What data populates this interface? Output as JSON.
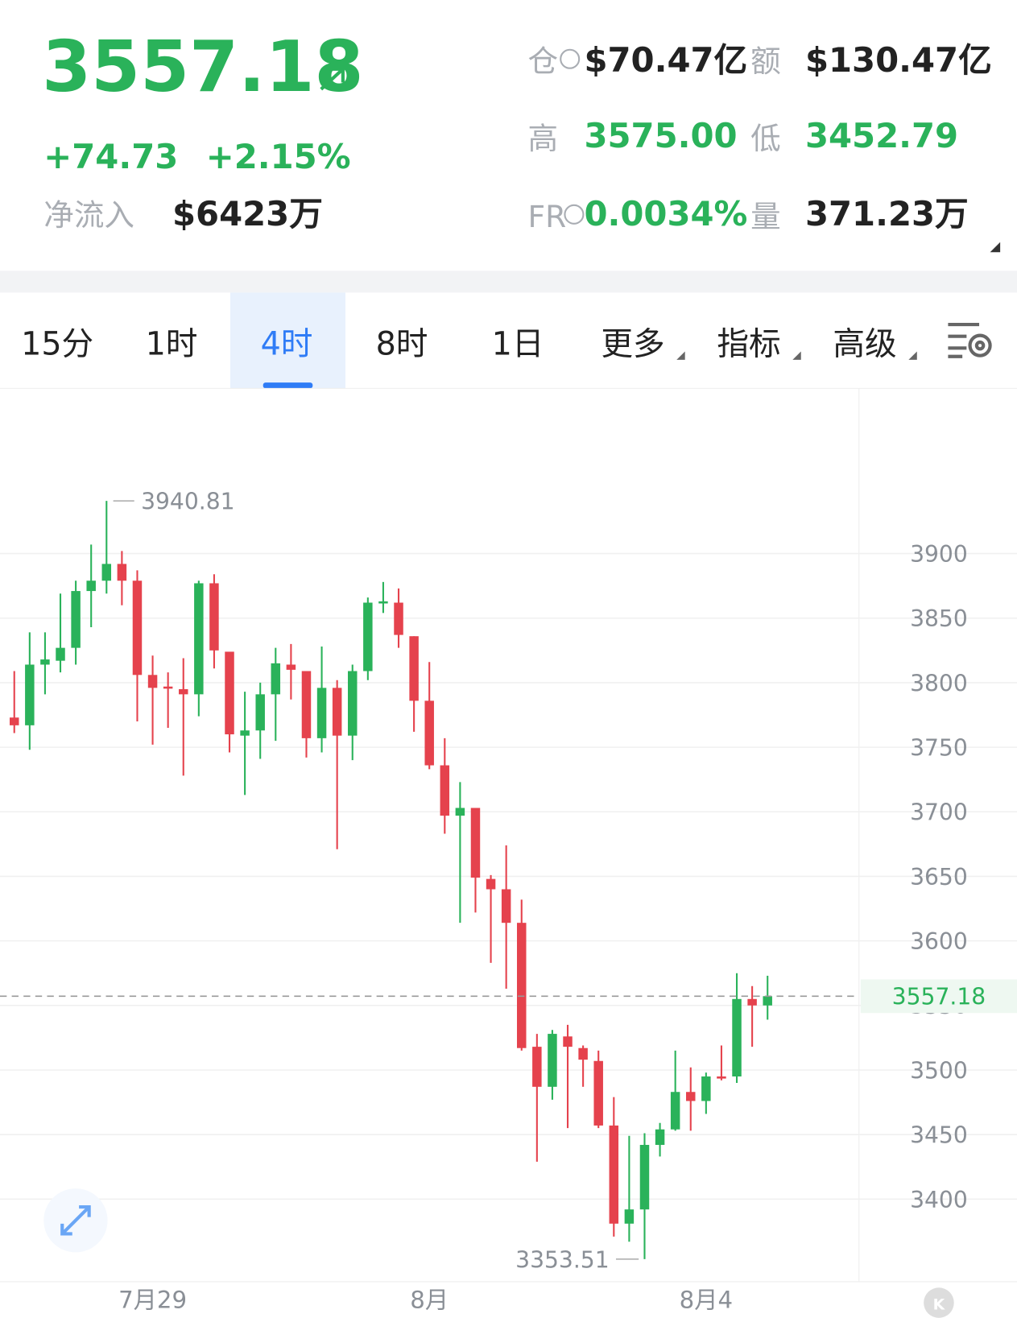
{
  "header": {
    "price": "3557.18",
    "change": "+74.73",
    "change_pct": "+2.15%",
    "inflow_label": "净流入",
    "inflow_value": "$6423万",
    "stats": [
      {
        "label": "仓",
        "value": "$70.47亿"
      },
      {
        "label": "额",
        "value": "$130.47亿"
      },
      {
        "label": "高",
        "value": "3575.00"
      },
      {
        "label": "低",
        "value": "3452.79"
      },
      {
        "label": "FR",
        "value": "0.0034%"
      },
      {
        "label": "量",
        "value": "371.23万"
      }
    ]
  },
  "tabs": [
    "15分",
    "1时",
    "4时",
    "8时",
    "1日",
    "更多",
    "指标",
    "高级"
  ],
  "selected_tab": "4时",
  "chart_data": {
    "type": "candlestick",
    "categories": [
      null,
      null,
      null,
      null,
      null,
      null,
      null,
      null,
      null,
      "7月29",
      null,
      null,
      null,
      null,
      null,
      null,
      null,
      null,
      null,
      null,
      null,
      null,
      null,
      null,
      null,
      null,
      null,
      "8月",
      null,
      null,
      null,
      null,
      null,
      null,
      null,
      null,
      null,
      null,
      null,
      null,
      null,
      null,
      null,
      null,
      null,
      "8月4",
      null,
      null,
      null,
      null
    ],
    "open": [
      3773,
      3767,
      3814,
      3817,
      3827,
      3871,
      3879,
      3892,
      3879,
      3806,
      3797,
      3795,
      3791,
      3877,
      3824,
      3759,
      3763,
      3791,
      3814,
      3809,
      3757,
      3796,
      3759,
      3809,
      3862,
      3862,
      3836,
      3786,
      3736,
      3697,
      3703,
      3648,
      3640,
      3614,
      3518,
      3487,
      3526,
      3517,
      3507,
      3457,
      3381,
      3392,
      3442,
      3454,
      3483,
      3476,
      3495,
      3495,
      3555,
      3550
    ],
    "high": [
      3809,
      3839,
      3839,
      3869,
      3879,
      3907,
      3940.81,
      3902,
      3887,
      3821,
      3808,
      3819,
      3879,
      3884,
      3824,
      3793,
      3800,
      3827,
      3830,
      3809,
      3828,
      3802,
      3814,
      3866,
      3878,
      3873,
      3836,
      3816,
      3757,
      3723,
      3703,
      3651,
      3674,
      3632,
      3528,
      3531,
      3535,
      3519,
      3515,
      3479,
      3449,
      3451,
      3459,
      3515,
      3502,
      3498,
      3519,
      3575,
      3565,
      3573
    ],
    "low": [
      3761,
      3748,
      3791,
      3808,
      3814,
      3843,
      3869,
      3860,
      3770,
      3752,
      3765,
      3728,
      3774,
      3811,
      3746,
      3713,
      3741,
      3755,
      3787,
      3742,
      3746,
      3671,
      3740,
      3802,
      3854,
      3827,
      3762,
      3733,
      3683,
      3614,
      3622,
      3583,
      3563,
      3515,
      3429,
      3477,
      3455,
      3487,
      3455,
      3371,
      3367,
      3353.51,
      3433,
      3453,
      3453,
      3466,
      3492,
      3490,
      3518,
      3539
    ],
    "close": [
      3767,
      3814,
      3818,
      3827,
      3871,
      3879,
      3892,
      3879,
      3806,
      3796,
      3796,
      3791,
      3877,
      3825,
      3760,
      3763,
      3791,
      3815,
      3810,
      3757,
      3796,
      3759,
      3809,
      3862,
      3863,
      3837,
      3786,
      3736,
      3697,
      3703,
      3649,
      3640,
      3614,
      3517,
      3487,
      3528,
      3518,
      3508,
      3457,
      3381,
      3392,
      3442,
      3454,
      3483,
      3476,
      3495,
      3494,
      3555,
      3550,
      3557.18
    ],
    "up_color": "#2ab25a",
    "down_color": "#e5424d",
    "ylim": [
      3336,
      4026
    ],
    "yticks": [
      3400,
      3450,
      3500,
      3550,
      3600,
      3650,
      3700,
      3750,
      3800,
      3850,
      3900
    ],
    "grid": true,
    "high_label": "3940.81",
    "low_label": "3353.51",
    "last_label": "3557.18"
  }
}
